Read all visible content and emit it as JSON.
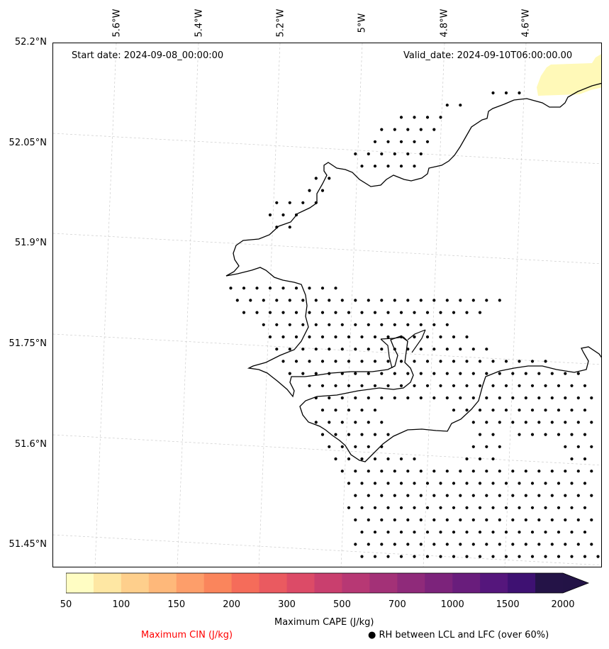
{
  "map": {
    "start_date": "Start date: 2024-09-08_00:00:00",
    "valid_date": "Valid_date: 2024-09-10T06:00:00.00",
    "lon_labels": [
      "5.6°W",
      "5.4°W",
      "5.2°W",
      "5°W",
      "4.8°W",
      "4.6°W"
    ],
    "lat_labels": [
      "52.2°N",
      "52.05°N",
      "51.9°N",
      "51.75°N",
      "51.6°N",
      "51.45°N"
    ],
    "cape_highlight_color": "#fff9b8",
    "coastline_color": "#000000",
    "gridline_color": "#cccccc"
  },
  "colorbar": {
    "title": "Maximum CAPE (J/kg)",
    "ticks": [
      "50",
      "100",
      "150",
      "200",
      "300",
      "500",
      "700",
      "1000",
      "1500",
      "2000"
    ],
    "colors": [
      "#fffdc3",
      "#fee7a3",
      "#fecf8c",
      "#feb87a",
      "#fd9e6a",
      "#fa855c",
      "#f56c5a",
      "#ea5a60",
      "#dc4b67",
      "#c93f6e",
      "#b73874",
      "#a33177",
      "#8f2a7a",
      "#7c237b",
      "#691d7c",
      "#55167c",
      "#3e1172",
      "#241347"
    ],
    "extend_color": "#231346"
  },
  "legend": {
    "cin_label": "Maximum CIN (J/kg)",
    "cin_color": "#ff0000",
    "rh_label": "● RH between LCL and LFC (over 60%)"
  }
}
